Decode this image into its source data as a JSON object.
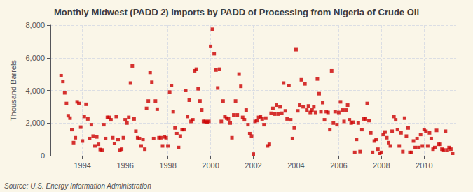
{
  "chart_data": {
    "type": "scatter",
    "title": "Monthly Midwest (PADD 2) Imports by PADD of Processing from Nigeria of Crude Oil",
    "ylabel": "Thousand Barrels",
    "annotations": [
      "Source: U.S. Energy Information Administration"
    ],
    "color": "#CC0000",
    "marker": "square",
    "grid": true,
    "xlim": [
      1992.5,
      2011.5
    ],
    "xticks": [
      1994,
      1996,
      1998,
      2000,
      2002,
      2004,
      2006,
      2008,
      2010
    ],
    "ylim": [
      0,
      8000
    ],
    "yticks": [
      0,
      {
        "value": 2000,
        "label": "2,000"
      },
      {
        "value": 4000,
        "label": "4,000"
      },
      {
        "value": 6000,
        "label": "6,000"
      },
      {
        "value": 8000,
        "label": "8,000"
      }
    ],
    "x": [
      1993.0,
      1993.083,
      1993.167,
      1993.25,
      1993.333,
      1993.417,
      1993.5,
      1993.583,
      1993.667,
      1993.75,
      1993.833,
      1993.917,
      1994.0,
      1994.083,
      1994.167,
      1994.25,
      1994.333,
      1994.417,
      1994.5,
      1994.583,
      1994.667,
      1994.75,
      1994.833,
      1994.917,
      1995.0,
      1995.083,
      1995.167,
      1995.25,
      1995.333,
      1995.417,
      1995.5,
      1995.583,
      1995.667,
      1995.75,
      1995.833,
      1995.917,
      1996.0,
      1996.083,
      1996.167,
      1996.25,
      1996.333,
      1996.417,
      1996.5,
      1996.583,
      1996.667,
      1996.75,
      1996.833,
      1996.917,
      1997.0,
      1997.083,
      1997.167,
      1997.25,
      1997.333,
      1997.417,
      1997.5,
      1997.583,
      1997.667,
      1997.75,
      1997.833,
      1997.917,
      1998.0,
      1998.083,
      1998.167,
      1998.25,
      1998.333,
      1998.417,
      1998.5,
      1998.583,
      1998.667,
      1998.75,
      1998.833,
      1998.917,
      1999.0,
      1999.083,
      1999.167,
      1999.25,
      1999.333,
      1999.417,
      1999.5,
      1999.583,
      1999.667,
      1999.75,
      1999.833,
      1999.917,
      2000.0,
      2000.083,
      2000.167,
      2000.25,
      2000.333,
      2000.417,
      2000.5,
      2000.583,
      2000.667,
      2000.75,
      2000.833,
      2000.917,
      2001.0,
      2001.083,
      2001.167,
      2001.25,
      2001.333,
      2001.417,
      2001.5,
      2001.583,
      2001.667,
      2001.75,
      2001.833,
      2001.917,
      2002.0,
      2002.083,
      2002.167,
      2002.25,
      2002.333,
      2002.417,
      2002.5,
      2002.583,
      2002.667,
      2002.75,
      2002.833,
      2002.917,
      2003.0,
      2003.083,
      2003.167,
      2003.25,
      2003.333,
      2003.417,
      2003.5,
      2003.583,
      2003.667,
      2003.75,
      2003.833,
      2003.917,
      2004.0,
      2004.083,
      2004.167,
      2004.25,
      2004.333,
      2004.417,
      2004.5,
      2004.583,
      2004.667,
      2004.75,
      2004.833,
      2004.917,
      2005.0,
      2005.083,
      2005.167,
      2005.25,
      2005.333,
      2005.417,
      2005.5,
      2005.583,
      2005.667,
      2005.75,
      2005.833,
      2005.917,
      2006.0,
      2006.083,
      2006.167,
      2006.25,
      2006.333,
      2006.417,
      2006.5,
      2006.583,
      2006.667,
      2006.75,
      2006.833,
      2006.917,
      2007.0,
      2007.083,
      2007.167,
      2007.25,
      2007.333,
      2007.417,
      2007.5,
      2007.583,
      2007.667,
      2007.75,
      2007.833,
      2007.917,
      2008.0,
      2008.083,
      2008.167,
      2008.25,
      2008.333,
      2008.417,
      2008.5,
      2008.583,
      2008.667,
      2008.75,
      2008.833,
      2008.917,
      2009.0,
      2009.083,
      2009.167,
      2009.25,
      2009.333,
      2009.417,
      2009.5,
      2009.583,
      2009.667,
      2009.75,
      2009.833,
      2009.917,
      2010.0,
      2010.083,
      2010.167,
      2010.25,
      2010.333,
      2010.417,
      2010.5,
      2010.583,
      2010.667,
      2010.75,
      2010.833,
      2010.917,
      2011.0,
      2011.083,
      2011.167,
      2011.25,
      2011.333
    ],
    "values": [
      4900,
      4550,
      3850,
      3200,
      2450,
      2300,
      1600,
      800,
      1100,
      3300,
      3200,
      1750,
      900,
      2400,
      3150,
      2250,
      1050,
      1900,
      1200,
      600,
      1150,
      700,
      380,
      350,
      1900,
      1050,
      2350,
      2350,
      2200,
      1100,
      750,
      2400,
      1000,
      350,
      400,
      1100,
      2200,
      2000,
      2350,
      4450,
      5500,
      2250,
      1500,
      1100,
      1050,
      600,
      1000,
      400,
      2900,
      3350,
      5100,
      4500,
      1050,
      3350,
      2850,
      1100,
      1100,
      600,
      1150,
      1100,
      600,
      3900,
      4300,
      2700,
      1700,
      1350,
      500,
      1200,
      1600,
      1600,
      4000,
      2400,
      3400,
      2100,
      2200,
      5200,
      5300,
      4100,
      3350,
      2800,
      2100,
      2100,
      2050,
      2100,
      6700,
      7750,
      6250,
      5250,
      4150,
      5300,
      2100,
      3350,
      2400,
      2300,
      2250,
      2000,
      1100,
      2500,
      3350,
      2500,
      5000,
      4250,
      2350,
      2200,
      2800,
      1900,
      1350,
      1200,
      100,
      2100,
      2150,
      2350,
      2400,
      2250,
      1900,
      2300,
      600,
      700,
      2600,
      2900,
      2550,
      3100,
      2550,
      3000,
      2600,
      4450,
      2750,
      2250,
      4300,
      2200,
      1050,
      1700,
      6500,
      2750,
      3100,
      4650,
      3000,
      4400,
      2800,
      3050,
      2650,
      2800,
      3000,
      2650,
      4700,
      3800,
      2700,
      3250,
      2200,
      2700,
      2650,
      1600,
      5200,
      2000,
      2700,
      1900,
      2650,
      3300,
      2800,
      2100,
      2800,
      3100,
      2200,
      2000,
      2050,
      200,
      1000,
      2000,
      250,
      1600,
      2250,
      2250,
      3200,
      2150,
      1400,
      200,
      900,
      1000,
      400,
      150,
      200,
      1300,
      1450,
      1100,
      800,
      600,
      1500,
      2400,
      2200,
      1600,
      600,
      1400,
      250,
      2300,
      1200,
      1700,
      200,
      200,
      900,
      500,
      1050,
      500,
      1300,
      600,
      1600,
      1500,
      600,
      1400,
      1050,
      400,
      500,
      1550,
      700,
      700,
      400,
      350,
      1500,
      350,
      500,
      400,
      150
    ]
  }
}
